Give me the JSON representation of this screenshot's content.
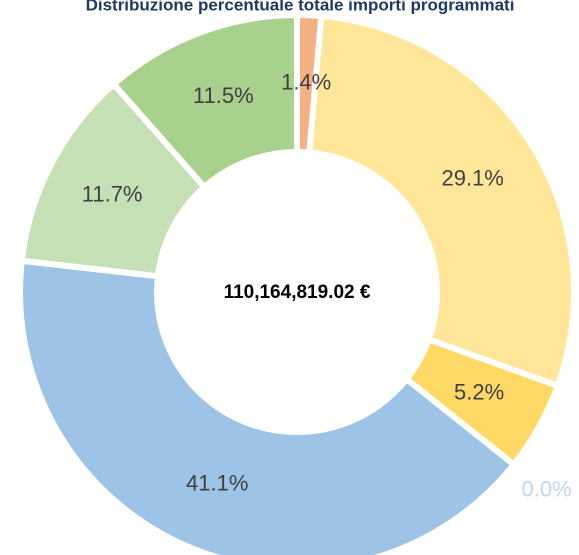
{
  "chart_data": {
    "type": "donut",
    "title": "Distribuzione percentuale totale importi programmati",
    "center_label": "110,164,819.02 €",
    "categories": [
      null,
      null,
      null,
      null,
      null,
      null,
      null
    ],
    "values": [
      1.4,
      29.1,
      5.2,
      0.0,
      41.1,
      11.7,
      11.5
    ],
    "value_labels": [
      "1.4%",
      "29.1%",
      "5.2%",
      "0.0%",
      "41.1%",
      "11.7%",
      "11.5%"
    ],
    "colors": [
      "#f4b183",
      "#ffe699",
      "#ffd966",
      "#bdd7ee",
      "#9dc3e6",
      "#c5e0b4",
      "#a9d18e"
    ]
  }
}
